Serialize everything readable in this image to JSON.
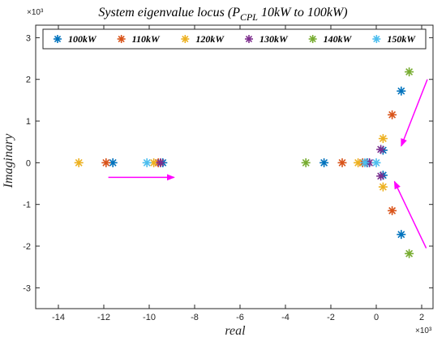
{
  "chart_data": {
    "type": "scatter",
    "title_main": "System eigenvalue locus (P",
    "title_sub": "CPL",
    "title_rest": "  10kW to 100kW)",
    "xlabel": "real",
    "ylabel": "Imaginary",
    "x_exponent": "×10³",
    "y_exponent": "×10³",
    "xlim": [
      -15,
      2.5
    ],
    "ylim": [
      -3.5,
      3.3
    ],
    "x_ticks": [
      -14,
      -12,
      -10,
      -8,
      -6,
      -4,
      -2,
      0,
      2
    ],
    "y_ticks": [
      3,
      2,
      1,
      0,
      -1,
      -2,
      -3
    ],
    "grid": false,
    "legend_position": "top",
    "marker": "asterisk",
    "series": [
      {
        "name": "100kW",
        "color": "#0072BD",
        "points": [
          [
            -11.6,
            0
          ],
          [
            -9.4,
            0
          ],
          [
            -2.3,
            0
          ],
          [
            -0.4,
            0
          ],
          [
            0.3,
            0.3
          ],
          [
            0.3,
            -0.3
          ],
          [
            1.1,
            1.72
          ],
          [
            1.1,
            -1.72
          ]
        ]
      },
      {
        "name": "110kW",
        "color": "#D95319",
        "points": [
          [
            -11.9,
            0
          ],
          [
            -9.6,
            0
          ],
          [
            -1.5,
            0
          ],
          [
            -0.6,
            0
          ],
          [
            0.7,
            1.15
          ],
          [
            0.7,
            -1.15
          ]
        ]
      },
      {
        "name": "120kW",
        "color": "#EDB120",
        "points": [
          [
            -13.1,
            0
          ],
          [
            -9.8,
            0
          ],
          [
            -0.8,
            0
          ],
          [
            0.3,
            0.58
          ],
          [
            0.3,
            -0.58
          ]
        ]
      },
      {
        "name": "130kW",
        "color": "#7E2F8E",
        "points": [
          [
            -9.5,
            0
          ],
          [
            -0.3,
            0
          ],
          [
            0.2,
            0.32
          ],
          [
            0.2,
            -0.32
          ]
        ]
      },
      {
        "name": "140kW",
        "color": "#77AC30",
        "points": [
          [
            -3.1,
            0
          ],
          [
            1.45,
            2.18
          ],
          [
            1.45,
            -2.18
          ]
        ]
      },
      {
        "name": "150kW",
        "color": "#4DBEEE",
        "points": [
          [
            -10.1,
            0
          ],
          [
            -0.5,
            0
          ],
          [
            0.0,
            0
          ]
        ]
      }
    ],
    "annotations": [
      {
        "type": "arrow",
        "color": "#FF00FF",
        "from": [
          -11.8,
          -0.35
        ],
        "to": [
          -8.9,
          -0.35
        ]
      },
      {
        "type": "arrow",
        "color": "#FF00FF",
        "from": [
          2.25,
          2.0
        ],
        "to": [
          1.1,
          0.4
        ]
      },
      {
        "type": "arrow",
        "color": "#FF00FF",
        "from": [
          2.2,
          -2.05
        ],
        "to": [
          0.8,
          -0.45
        ]
      }
    ]
  }
}
